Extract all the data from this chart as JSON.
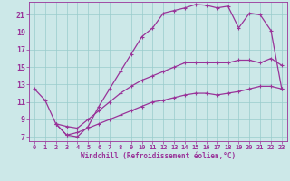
{
  "xlabel": "Windchill (Refroidissement éolien,°C)",
  "xlim": [
    -0.5,
    23.5
  ],
  "ylim": [
    6.5,
    22.5
  ],
  "xticks": [
    0,
    1,
    2,
    3,
    4,
    5,
    6,
    7,
    8,
    9,
    10,
    11,
    12,
    13,
    14,
    15,
    16,
    17,
    18,
    19,
    20,
    21,
    22,
    23
  ],
  "yticks": [
    7,
    9,
    11,
    13,
    15,
    17,
    19,
    21
  ],
  "bg_color": "#cce8e8",
  "line_color": "#993399",
  "grid_color": "#99cccc",
  "curve1_x": [
    0,
    1,
    2,
    3,
    4,
    5,
    6,
    7,
    8,
    9,
    10,
    11,
    12,
    13,
    14,
    15,
    16,
    17,
    18,
    19,
    20,
    21,
    22,
    23
  ],
  "curve1_y": [
    12.5,
    11.2,
    8.5,
    7.2,
    7.0,
    8.2,
    10.5,
    12.5,
    14.5,
    16.5,
    18.5,
    19.5,
    21.2,
    21.5,
    21.8,
    22.2,
    22.1,
    21.8,
    22.0,
    19.5,
    21.2,
    21.0,
    19.2,
    12.5
  ],
  "curve2_x": [
    2,
    3,
    4,
    5,
    6,
    7,
    8,
    9,
    10,
    11,
    12,
    13,
    14,
    15,
    16,
    17,
    18,
    19,
    20,
    21,
    22,
    23
  ],
  "curve2_y": [
    8.5,
    8.2,
    8.0,
    9.0,
    10.0,
    11.0,
    12.0,
    12.8,
    13.5,
    14.0,
    14.5,
    15.0,
    15.5,
    15.5,
    15.5,
    15.5,
    15.5,
    15.8,
    15.8,
    15.5,
    16.0,
    15.2
  ],
  "curve3_x": [
    2,
    3,
    4,
    5,
    6,
    7,
    8,
    9,
    10,
    11,
    12,
    13,
    14,
    15,
    16,
    17,
    18,
    19,
    20,
    21,
    22,
    23
  ],
  "curve3_y": [
    8.5,
    7.2,
    7.5,
    8.0,
    8.5,
    9.0,
    9.5,
    10.0,
    10.5,
    11.0,
    11.2,
    11.5,
    11.8,
    12.0,
    12.0,
    11.8,
    12.0,
    12.2,
    12.5,
    12.8,
    12.8,
    12.5
  ]
}
